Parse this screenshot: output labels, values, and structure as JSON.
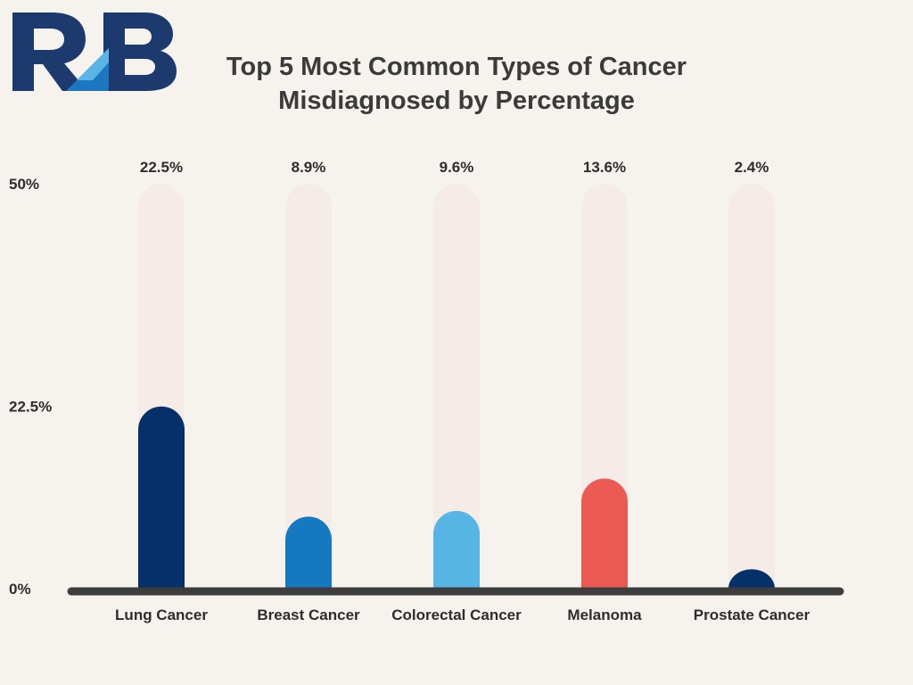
{
  "logo": {
    "text": "RB",
    "colors": {
      "navy": "#1d3a6e",
      "blue": "#1c77c0",
      "light": "#5ab4e5"
    }
  },
  "title": {
    "line1": "Top 5 Most Common Types of Cancer",
    "line2": "Misdiagnosed by Percentage"
  },
  "chart_data": {
    "type": "bar",
    "title": "Top 5 Most Common Types of Cancer Misdiagnosed by Percentage",
    "categories": [
      "Lung Cancer",
      "Breast Cancer",
      "Colorectal Cancer",
      "Melanoma",
      "Prostate Cancer"
    ],
    "values": [
      22.5,
      8.9,
      9.6,
      13.6,
      2.4
    ],
    "value_labels": [
      "22.5%",
      "8.9%",
      "9.6%",
      "13.6%",
      "2.4%"
    ],
    "colors": [
      "#05306a",
      "#1479bf",
      "#57b5e6",
      "#ec5a54",
      "#05306a"
    ],
    "track_color": "#f5ece8",
    "axis_color": "#3d3d3d",
    "yticks": [
      {
        "value": 0,
        "label": "0%"
      },
      {
        "value": 22.5,
        "label": "22.5%"
      },
      {
        "value": 50,
        "label": "50%"
      }
    ],
    "ylim": [
      0,
      50
    ],
    "grid": false,
    "xlabel": "",
    "ylabel": ""
  }
}
